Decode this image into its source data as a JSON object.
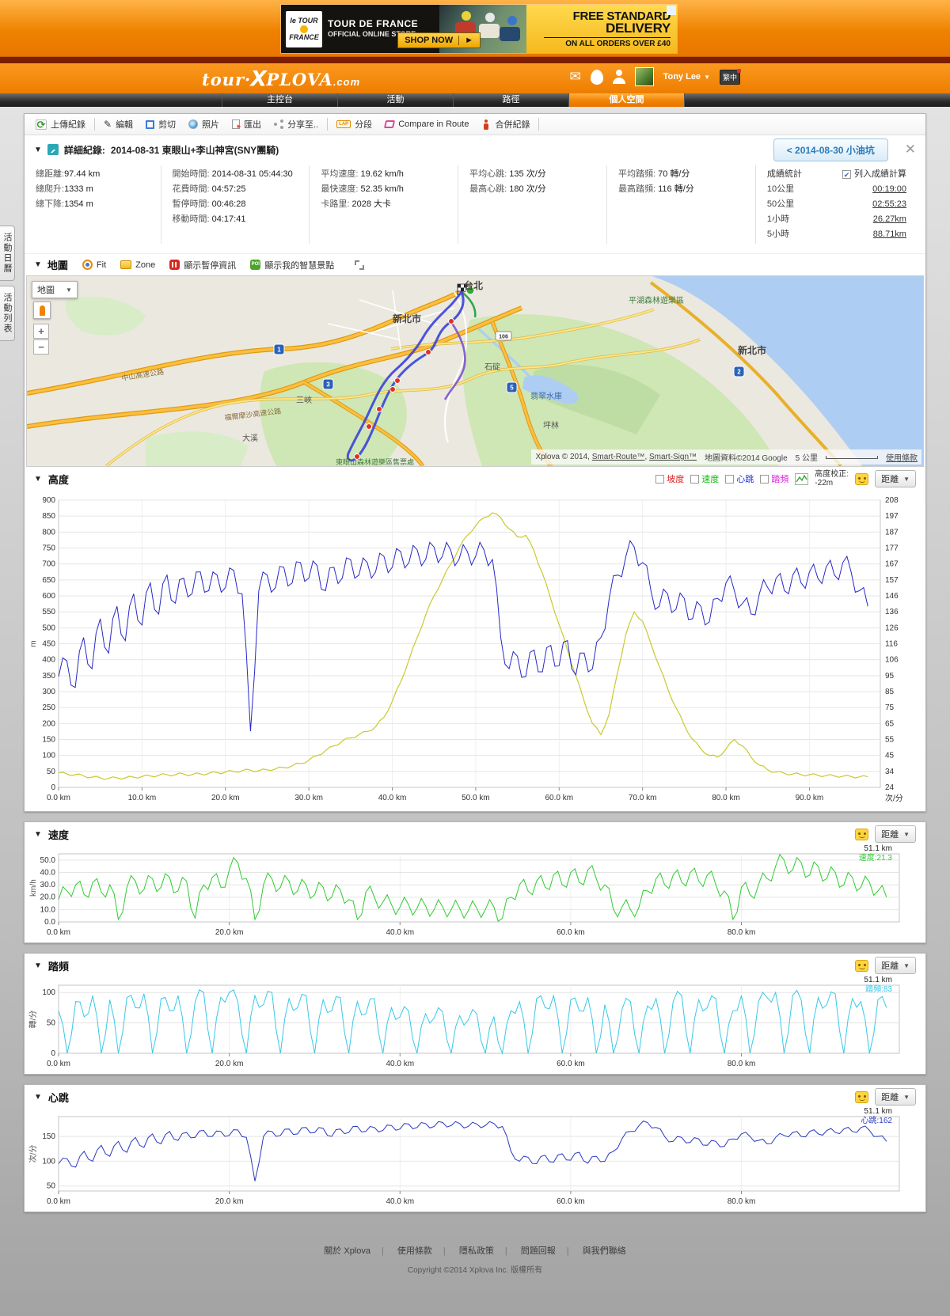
{
  "icons": {
    "collapse": "▼",
    "caret": "▼",
    "close": "✕",
    "check": "✔",
    "mail": "✉",
    "play": "►",
    "plus": "+",
    "minus": "−"
  },
  "ad": {
    "brand_line1": "le TOUR",
    "brand_line2": "FRANCE",
    "title": "TOUR DE FRANCE",
    "subtitle": "OFFICIAL ONLINE STORE",
    "cta": "SHOP NOW",
    "promo_line1": "FREE STANDARD",
    "promo_line2": "DELIVERY",
    "promo_line3": "ON ALL ORDERS OVER £40",
    "adchoices": "ⓘ"
  },
  "header": {
    "logo_prefix": "tour",
    "logo_dot": "·",
    "logo_x": "X",
    "logo_rest": "PLOVA",
    "logo_tld": ".com",
    "user_name": "Tony Lee",
    "lang_badge": "繁中"
  },
  "nav": {
    "items": [
      {
        "label": "主控台"
      },
      {
        "label": "活動"
      },
      {
        "label": "路徑"
      },
      {
        "label": "個人空間"
      }
    ],
    "active_index": 3
  },
  "side_tabs": {
    "calendar": "活動日曆",
    "list": "活動列表"
  },
  "toolbar": {
    "upload": "上傳紀錄",
    "edit": "編輯",
    "crop": "剪切",
    "photo": "照片",
    "export": "匯出",
    "share": "分享至..",
    "lap": "分段",
    "lap_icon_text": "LAP",
    "compare": "Compare in Route",
    "merge": "合併紀錄"
  },
  "record": {
    "section_label": "詳細紀錄:",
    "title": "2014-08-31 東眼山+李山神宮(SNY團騎)",
    "prev_button": "< 2014-08-30 小油坑",
    "stats_col1": [
      {
        "label": "總距離:",
        "value": "97.44 km"
      },
      {
        "label": "總爬升:",
        "value": "1333 m"
      },
      {
        "label": "總下降:",
        "value": "1354 m"
      }
    ],
    "stats_col2": [
      {
        "label": "開始時間:",
        "value": "2014-08-31 05:44:30"
      },
      {
        "label": "花費時間:",
        "value": "04:57:25"
      },
      {
        "label": "暫停時間:",
        "value": "00:46:28"
      },
      {
        "label": "移動時間:",
        "value": "04:17:41"
      }
    ],
    "stats_col3": [
      {
        "label": "平均速度:",
        "value": "19.62 km/h"
      },
      {
        "label": "最快速度:",
        "value": "52.35 km/h"
      },
      {
        "label": "卡路里:",
        "value": "2028 大卡"
      }
    ],
    "stats_col4": [
      {
        "label": "平均心跳:",
        "value": "135 次/分"
      },
      {
        "label": "最高心跳:",
        "value": "180 次/分"
      }
    ],
    "stats_col5": [
      {
        "label": "平均踏頻:",
        "value": "70 轉/分"
      },
      {
        "label": "最高踏頻:",
        "value": "116 轉/分"
      }
    ],
    "performance": {
      "title": "成績統計",
      "include_label": "列入成績計算",
      "rows": [
        {
          "label": "10公里",
          "value": "00:19:00"
        },
        {
          "label": "50公里",
          "value": "02:55:23"
        },
        {
          "label": "1小時",
          "value": "26.27km"
        },
        {
          "label": "5小時",
          "value": "88.71km"
        }
      ]
    }
  },
  "map": {
    "section_title": "地圖",
    "fit_label": "Fit",
    "zone_label": "Zone",
    "pause_label": "顯示暫停資訊",
    "poi_label": "顯示我的智慧景點",
    "poi_icon_text": "POI",
    "maptype_label": "地圖",
    "labels": [
      {
        "text": "台北"
      },
      {
        "text": "新北市"
      },
      {
        "text": "新北市"
      },
      {
        "text": "翡翠水庫"
      },
      {
        "text": "坪林"
      },
      {
        "text": "石碇"
      },
      {
        "text": "三峽"
      },
      {
        "text": "大溪"
      },
      {
        "text": "平湖森林遊樂區"
      },
      {
        "text": "東眼山森林遊樂區售票處"
      },
      {
        "text": "中山高速公路"
      },
      {
        "text": "福爾摩沙高速公路"
      }
    ],
    "shields": [
      {
        "num": "1"
      },
      {
        "num": "3"
      },
      {
        "num": "5"
      },
      {
        "num": "2"
      },
      {
        "num": "106"
      }
    ],
    "attribution_prefix": "Xplova © 2014, ",
    "attribution_link1": "Smart-Route™",
    "attribution_sep": ", ",
    "attribution_link2": "Smart-Sign™",
    "google_attribution": "地圖資料©2014 Google",
    "scale_label": "5 公里",
    "terms": "使用條款"
  },
  "charts": {
    "distance_label": "距離",
    "elevation": {
      "title": "高度",
      "legend": [
        {
          "label": "坡度",
          "color": "#e02020",
          "checked": false
        },
        {
          "label": "速度",
          "color": "#11bb11",
          "checked": false
        },
        {
          "label": "心跳",
          "color": "#2233cc",
          "checked": true
        },
        {
          "label": "踏頻",
          "color": "#dd22dd",
          "checked": false
        }
      ],
      "correction_label": "高度校正:",
      "correction_value": "-22m",
      "y_unit": "m",
      "y2_unit": "次/分",
      "y_min": 0,
      "y_max": 900,
      "y_ticks": [
        0,
        50,
        100,
        150,
        200,
        250,
        300,
        350,
        400,
        450,
        500,
        550,
        600,
        650,
        700,
        750,
        800,
        850,
        900
      ],
      "y2_labels": [
        "24",
        "34",
        "45",
        "55",
        "65",
        "75",
        "85",
        "95",
        "106",
        "116",
        "126",
        "136",
        "146",
        "157",
        "167",
        "177",
        "187",
        "197",
        "208"
      ],
      "x_max": 98.5,
      "x_ticks": [
        {
          "km": 0,
          "label": "0.0 km"
        },
        {
          "km": 10,
          "label": "10.0 km"
        },
        {
          "km": 20,
          "label": "20.0 km"
        },
        {
          "km": 30,
          "label": "30.0 km"
        },
        {
          "km": 40,
          "label": "40.0 km"
        },
        {
          "km": 50,
          "label": "50.0 km"
        },
        {
          "km": 60,
          "label": "60.0 km"
        },
        {
          "km": 70,
          "label": "70.0 km"
        },
        {
          "km": 80,
          "label": "80.0 km"
        },
        {
          "km": 90,
          "label": "90.0 km"
        }
      ],
      "series": [
        {
          "name": "elevation_m",
          "color": "#c9c92e",
          "width": 1.2,
          "jag": 4,
          "y_min": 0,
          "y_max": 900,
          "values": [
            45,
            42,
            40,
            36,
            32,
            30,
            28,
            30,
            30,
            32,
            34,
            36,
            38,
            40,
            40,
            42,
            40,
            42,
            44,
            46,
            48,
            50,
            52,
            54,
            52,
            55,
            58,
            62,
            68,
            75,
            85,
            100,
            115,
            130,
            145,
            155,
            165,
            175,
            190,
            220,
            270,
            330,
            400,
            470,
            540,
            600,
            650,
            700,
            750,
            790,
            820,
            845,
            860,
            845,
            810,
            785,
            790,
            740,
            670,
            590,
            510,
            430,
            350,
            270,
            200,
            165,
            230,
            360,
            480,
            550,
            520,
            450,
            380,
            310,
            250,
            195,
            150,
            120,
            100,
            95,
            120,
            150,
            130,
            95,
            70,
            55,
            48,
            44,
            42,
            40,
            40,
            38,
            37,
            36,
            35,
            34,
            33,
            33
          ]
        },
        {
          "name": "heartrate_bpm",
          "color": "#2828c8",
          "width": 1,
          "jag": 7,
          "y_min": 24,
          "y_max": 208,
          "values": [
            95,
            105,
            88,
            120,
            100,
            132,
            110,
            140,
            118,
            148,
            128,
            155,
            135,
            160,
            142,
            158,
            148,
            162,
            150,
            160,
            152,
            163,
            148,
            60,
            150,
            160,
            152,
            165,
            155,
            168,
            158,
            166,
            150,
            165,
            158,
            170,
            160,
            168,
            162,
            172,
            165,
            175,
            168,
            176,
            170,
            178,
            172,
            176,
            170,
            175,
            172,
            176,
            170,
            120,
            100,
            108,
            95,
            112,
            98,
            115,
            102,
            118,
            96,
            110,
            100,
            120,
            145,
            160,
            172,
            178,
            168,
            150,
            140,
            148,
            138,
            145,
            132,
            140,
            130,
            145,
            155,
            150,
            142,
            135,
            148,
            152,
            158,
            150,
            160,
            155,
            162,
            158,
            165,
            160,
            168,
            162,
            150,
            140
          ]
        }
      ]
    },
    "speed": {
      "title": "速度",
      "tooltip_km": "51.1 km",
      "tooltip_value": "速度:21.3",
      "color": "#2ecc2e",
      "y_unit": "km/h",
      "y_min": 0,
      "y_max": 55,
      "y_ticks": [
        {
          "v": 0,
          "label": "0.0"
        },
        {
          "v": 10,
          "label": "10.0"
        },
        {
          "v": 20,
          "label": "20.0"
        },
        {
          "v": 30,
          "label": "30.0"
        },
        {
          "v": 40,
          "label": "40.0"
        },
        {
          "v": 50,
          "label": "50.0"
        }
      ],
      "x_max": 98.5,
      "x_ticks": [
        {
          "km": 0,
          "label": "0.0 km"
        },
        {
          "km": 20,
          "label": "20.0 km"
        },
        {
          "km": 40,
          "label": "40.0 km"
        },
        {
          "km": 60,
          "label": "60.0 km"
        },
        {
          "km": 80,
          "label": "80.0 km"
        }
      ],
      "jag": 7,
      "values": [
        18,
        25,
        30,
        22,
        32,
        24,
        30,
        2,
        28,
        33,
        26,
        35,
        28,
        36,
        25,
        33,
        3,
        30,
        36,
        28,
        42,
        48,
        35,
        2,
        30,
        35,
        28,
        33,
        25,
        30,
        22,
        28,
        20,
        26,
        18,
        2,
        24,
        20,
        16,
        14,
        12,
        14,
        11,
        13,
        10,
        12,
        10,
        11,
        9,
        11,
        10,
        12,
        3,
        20,
        30,
        25,
        33,
        28,
        38,
        30,
        40,
        32,
        42,
        35,
        30,
        10,
        12,
        10,
        12,
        25,
        35,
        30,
        38,
        32,
        40,
        33,
        38,
        30,
        25,
        2,
        28,
        22,
        30,
        35,
        45,
        50,
        42,
        48,
        38,
        45,
        35,
        40,
        30,
        36,
        28,
        32,
        25,
        20
      ]
    },
    "cadence": {
      "title": "踏頻",
      "tooltip_km": "51.1 km",
      "tooltip_value": "踏頻:83",
      "color": "#38c8e8",
      "y_unit": "轉/分",
      "y_min": 0,
      "y_max": 112,
      "y_ticks": [
        {
          "v": 0,
          "label": "0"
        },
        {
          "v": 50,
          "label": "50"
        },
        {
          "v": 100,
          "label": "100"
        }
      ],
      "x_max": 98.5,
      "x_ticks": [
        {
          "km": 0,
          "label": "0.0 km"
        },
        {
          "km": 20,
          "label": "20.0 km"
        },
        {
          "km": 40,
          "label": "40.0 km"
        },
        {
          "km": 60,
          "label": "60.0 km"
        },
        {
          "km": 80,
          "label": "80.0 km"
        }
      ],
      "jag": 12,
      "values": [
        70,
        0,
        85,
        60,
        95,
        0,
        88,
        0,
        92,
        75,
        98,
        0,
        90,
        70,
        95,
        0,
        85,
        100,
        0,
        92,
        100,
        85,
        0,
        95,
        80,
        100,
        0,
        90,
        75,
        95,
        0,
        88,
        70,
        92,
        0,
        85,
        65,
        90,
        0,
        75,
        60,
        70,
        0,
        65,
        58,
        68,
        0,
        62,
        55,
        65,
        0,
        60,
        0,
        70,
        85,
        0,
        90,
        75,
        95,
        0,
        88,
        70,
        92,
        0,
        80,
        0,
        72,
        85,
        0,
        78,
        90,
        0,
        85,
        95,
        0,
        88,
        75,
        90,
        0,
        70,
        95,
        0,
        85,
        92,
        100,
        0,
        95,
        88,
        0,
        92,
        80,
        98,
        0,
        90,
        85,
        0,
        88,
        75
      ]
    },
    "heartrate": {
      "title": "心跳",
      "tooltip_km": "51.1 km",
      "tooltip_value": "心跳:162",
      "color": "#2838c0",
      "y_unit": "次/分",
      "y_min": 40,
      "y_max": 190,
      "y_ticks": [
        {
          "v": 50,
          "label": "50"
        },
        {
          "v": 100,
          "label": "100"
        },
        {
          "v": 150,
          "label": "150"
        }
      ],
      "x_max": 98.5,
      "x_ticks": [
        {
          "km": 0,
          "label": "0.0 km"
        },
        {
          "km": 20,
          "label": "20.0 km"
        },
        {
          "km": 40,
          "label": "40.0 km"
        },
        {
          "km": 60,
          "label": "60.0 km"
        },
        {
          "km": 80,
          "label": "80.0 km"
        }
      ],
      "jag": 6,
      "values": [
        95,
        105,
        88,
        120,
        100,
        132,
        110,
        140,
        118,
        148,
        128,
        155,
        135,
        160,
        142,
        158,
        148,
        162,
        150,
        160,
        152,
        163,
        148,
        60,
        150,
        160,
        152,
        165,
        155,
        168,
        158,
        166,
        150,
        165,
        158,
        170,
        160,
        168,
        162,
        172,
        165,
        175,
        168,
        176,
        170,
        178,
        172,
        176,
        170,
        175,
        172,
        176,
        170,
        120,
        100,
        108,
        95,
        112,
        98,
        115,
        102,
        118,
        96,
        110,
        100,
        120,
        145,
        160,
        172,
        178,
        168,
        150,
        140,
        148,
        138,
        145,
        132,
        140,
        130,
        145,
        155,
        150,
        142,
        135,
        148,
        152,
        158,
        150,
        160,
        155,
        162,
        158,
        165,
        160,
        168,
        162,
        150,
        140
      ]
    }
  },
  "footer": {
    "links": [
      {
        "label": "關於 Xplova"
      },
      {
        "label": "使用條款"
      },
      {
        "label": "隱私政策"
      },
      {
        "label": "問題回報"
      },
      {
        "label": "與我們聯絡"
      }
    ],
    "copyright": "Copyright ©2014 Xplova Inc. 版權所有"
  }
}
